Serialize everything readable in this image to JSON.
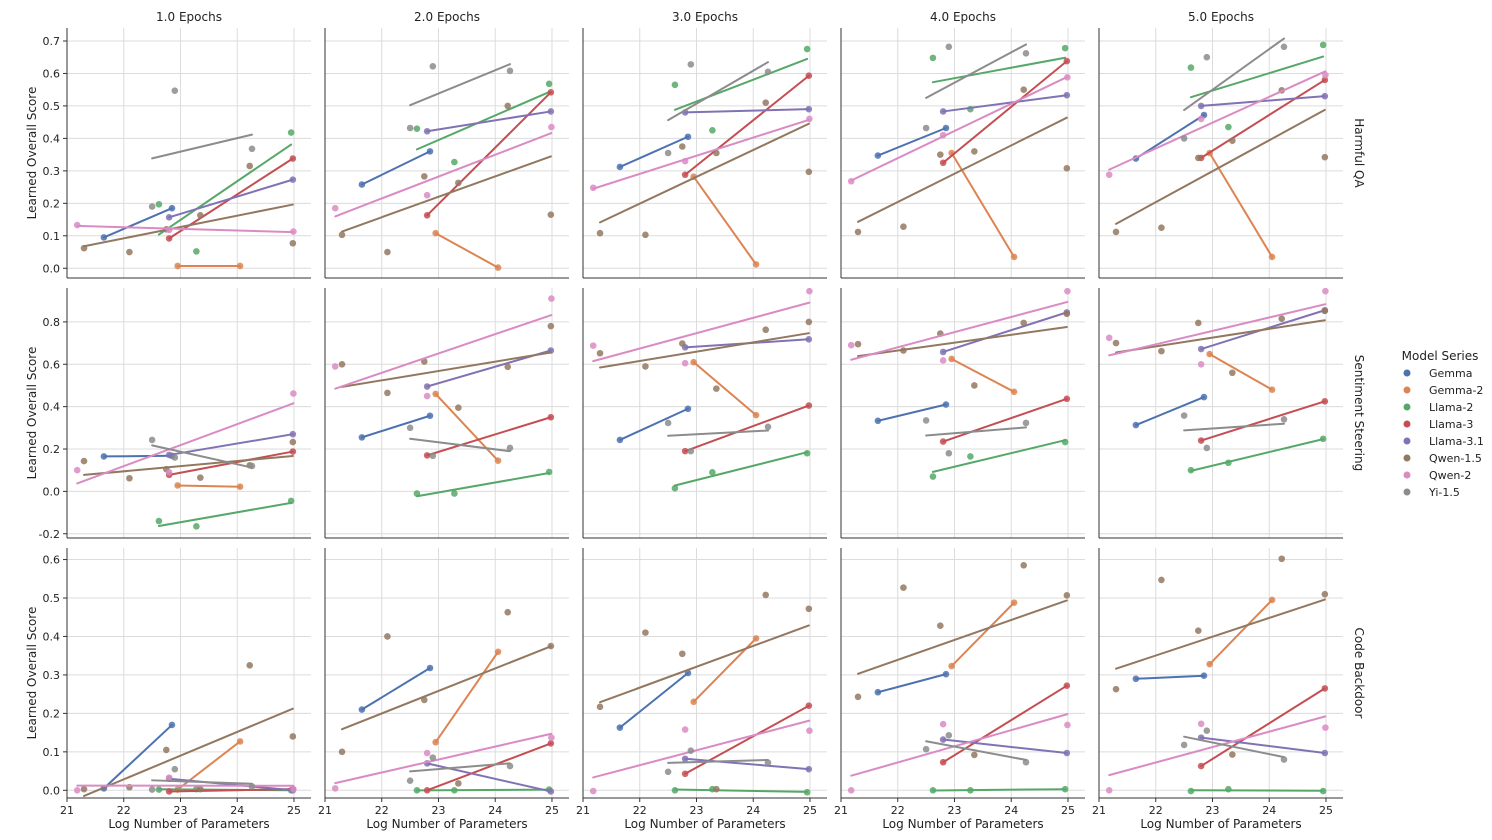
{
  "chart_data": {
    "type": "scatter",
    "figure_kind": "faceted scatter with per-series regression lines",
    "columns": [
      "1.0 Epochs",
      "2.0 Epochs",
      "3.0 Epochs",
      "4.0 Epochs",
      "5.0 Epochs"
    ],
    "rows": [
      "Harmful QA",
      "Sentiment Steering",
      "Code Backdoor"
    ],
    "xlabel": "Log Number of Parameters",
    "ylabel": "Learned Overall Score",
    "xlim": [
      21,
      25.3
    ],
    "xticks": [
      21,
      22,
      23,
      24,
      25
    ],
    "ylims": [
      [
        -0.03,
        0.74
      ],
      [
        -0.22,
        0.96
      ],
      [
        -0.02,
        0.63
      ]
    ],
    "yticks": [
      [
        0.0,
        0.1,
        0.2,
        0.3,
        0.4,
        0.5,
        0.6,
        0.7
      ],
      [
        -0.2,
        0.0,
        0.2,
        0.4,
        0.6,
        0.8
      ],
      [
        0.0,
        0.1,
        0.2,
        0.3,
        0.4,
        0.5,
        0.6
      ]
    ],
    "grid": true,
    "legend": {
      "title": "Model Series",
      "placement": "right",
      "entries": [
        "Gemma",
        "Gemma-2",
        "Llama-2",
        "Llama-3",
        "Llama-3.1",
        "Qwen-1.5",
        "Qwen-2",
        "Yi-1.5"
      ]
    },
    "colors": {
      "Gemma": "#4c72b0",
      "Gemma-2": "#dd8452",
      "Llama-2": "#55a868",
      "Llama-3": "#c44e52",
      "Llama-3.1": "#8172b3",
      "Qwen-1.5": "#937860",
      "Qwen-2": "#da8bc3",
      "Yi-1.5": "#8c8c8c"
    },
    "series_x": {
      "Gemma": [
        21.65,
        22.85
      ],
      "Gemma-2": [
        22.95,
        24.05
      ],
      "Llama-2": [
        22.62,
        23.28,
        24.95
      ],
      "Llama-3": [
        22.8,
        24.98
      ],
      "Llama-3.1": [
        22.8,
        24.98
      ],
      "Qwen-1.5": [
        21.3,
        22.1,
        22.75,
        23.35,
        24.22,
        24.98
      ],
      "Qwen-2": [
        21.18,
        22.8,
        24.99
      ],
      "Yi-1.5": [
        22.5,
        22.9,
        24.26
      ]
    },
    "panels": [
      {
        "row": 0,
        "col": 0,
        "points": {
          "Gemma": [
            0.095,
            0.185
          ],
          "Gemma-2": [
            0.007,
            0.007
          ],
          "Llama-2": [
            0.197,
            0.052,
            0.418
          ],
          "Llama-3": [
            0.092,
            0.338
          ],
          "Llama-3.1": [
            0.157,
            0.273
          ],
          "Qwen-1.5": [
            0.062,
            0.05,
            0.12,
            0.163,
            0.315,
            0.077
          ],
          "Qwen-2": [
            0.133,
            0.118,
            0.113
          ],
          "Yi-1.5": [
            0.19,
            0.547,
            0.368
          ]
        }
      },
      {
        "row": 0,
        "col": 1,
        "points": {
          "Gemma": [
            0.258,
            0.36
          ],
          "Gemma-2": [
            0.108,
            0.002
          ],
          "Llama-2": [
            0.43,
            0.327,
            0.568
          ],
          "Llama-3": [
            0.163,
            0.542
          ],
          "Llama-3.1": [
            0.422,
            0.483
          ],
          "Qwen-1.5": [
            0.103,
            0.05,
            0.283,
            0.263,
            0.5,
            0.165
          ],
          "Qwen-2": [
            0.185,
            0.225,
            0.435
          ],
          "Yi-1.5": [
            0.432,
            0.622,
            0.608
          ]
        }
      },
      {
        "row": 0,
        "col": 2,
        "points": {
          "Gemma": [
            0.312,
            0.405
          ],
          "Gemma-2": [
            0.282,
            0.012
          ],
          "Llama-2": [
            0.565,
            0.425,
            0.675
          ],
          "Llama-3": [
            0.288,
            0.593
          ],
          "Llama-3.1": [
            0.48,
            0.49
          ],
          "Qwen-1.5": [
            0.108,
            0.103,
            0.375,
            0.355,
            0.51,
            0.297
          ],
          "Qwen-2": [
            0.248,
            0.33,
            0.46
          ],
          "Yi-1.5": [
            0.355,
            0.628,
            0.605
          ]
        }
      },
      {
        "row": 0,
        "col": 3,
        "points": {
          "Gemma": [
            0.347,
            0.432
          ],
          "Gemma-2": [
            0.355,
            0.035
          ],
          "Llama-2": [
            0.648,
            0.49,
            0.678
          ],
          "Llama-3": [
            0.325,
            0.638
          ],
          "Llama-3.1": [
            0.483,
            0.533
          ],
          "Qwen-1.5": [
            0.112,
            0.128,
            0.35,
            0.36,
            0.55,
            0.308
          ],
          "Qwen-2": [
            0.268,
            0.41,
            0.588
          ],
          "Yi-1.5": [
            0.432,
            0.682,
            0.662
          ]
        }
      },
      {
        "row": 0,
        "col": 4,
        "points": {
          "Gemma": [
            0.338,
            0.472
          ],
          "Gemma-2": [
            0.355,
            0.035
          ],
          "Llama-2": [
            0.618,
            0.435,
            0.688
          ],
          "Llama-3": [
            0.34,
            0.58
          ],
          "Llama-3.1": [
            0.5,
            0.53
          ],
          "Qwen-1.5": [
            0.112,
            0.125,
            0.34,
            0.393,
            0.548,
            0.342
          ],
          "Qwen-2": [
            0.288,
            0.46,
            0.595
          ],
          "Yi-1.5": [
            0.4,
            0.65,
            0.682
          ]
        }
      },
      {
        "row": 1,
        "col": 0,
        "points": {
          "Gemma": [
            0.165,
            0.168
          ],
          "Gemma-2": [
            0.028,
            0.022
          ],
          "Llama-2": [
            -0.14,
            -0.165,
            -0.045
          ],
          "Llama-3": [
            0.078,
            0.188
          ],
          "Llama-3.1": [
            0.172,
            0.27
          ],
          "Qwen-1.5": [
            0.143,
            0.062,
            0.105,
            0.065,
            0.123,
            0.233
          ],
          "Qwen-2": [
            0.1,
            0.09,
            0.462
          ],
          "Yi-1.5": [
            0.243,
            0.16,
            0.12
          ]
        }
      },
      {
        "row": 1,
        "col": 1,
        "points": {
          "Gemma": [
            0.255,
            0.357
          ],
          "Gemma-2": [
            0.46,
            0.145
          ],
          "Llama-2": [
            -0.01,
            -0.01,
            0.092
          ],
          "Llama-3": [
            0.17,
            0.35
          ],
          "Llama-3.1": [
            0.495,
            0.665
          ],
          "Qwen-1.5": [
            0.6,
            0.465,
            0.613,
            0.395,
            0.588,
            0.78
          ],
          "Qwen-2": [
            0.59,
            0.45,
            0.91
          ],
          "Yi-1.5": [
            0.3,
            0.168,
            0.205
          ]
        }
      },
      {
        "row": 1,
        "col": 2,
        "points": {
          "Gemma": [
            0.243,
            0.39
          ],
          "Gemma-2": [
            0.61,
            0.36
          ],
          "Llama-2": [
            0.015,
            0.09,
            0.18
          ],
          "Llama-3": [
            0.19,
            0.405
          ],
          "Llama-3.1": [
            0.68,
            0.718
          ],
          "Qwen-1.5": [
            0.652,
            0.59,
            0.698,
            0.485,
            0.763,
            0.8
          ],
          "Qwen-2": [
            0.688,
            0.605,
            0.945
          ],
          "Yi-1.5": [
            0.323,
            0.19,
            0.305
          ]
        }
      },
      {
        "row": 1,
        "col": 3,
        "points": {
          "Gemma": [
            0.333,
            0.41
          ],
          "Gemma-2": [
            0.625,
            0.47
          ],
          "Llama-2": [
            0.07,
            0.165,
            0.233
          ],
          "Llama-3": [
            0.235,
            0.437
          ],
          "Llama-3.1": [
            0.658,
            0.845
          ],
          "Qwen-1.5": [
            0.695,
            0.665,
            0.745,
            0.5,
            0.795,
            0.838
          ],
          "Qwen-2": [
            0.69,
            0.618,
            0.945
          ],
          "Yi-1.5": [
            0.335,
            0.18,
            0.323
          ]
        }
      },
      {
        "row": 1,
        "col": 4,
        "points": {
          "Gemma": [
            0.313,
            0.445
          ],
          "Gemma-2": [
            0.648,
            0.48
          ],
          "Llama-2": [
            0.1,
            0.135,
            0.248
          ],
          "Llama-3": [
            0.24,
            0.425
          ],
          "Llama-3.1": [
            0.672,
            0.855
          ],
          "Qwen-1.5": [
            0.7,
            0.662,
            0.795,
            0.56,
            0.815,
            0.852
          ],
          "Qwen-2": [
            0.725,
            0.6,
            0.945
          ],
          "Yi-1.5": [
            0.358,
            0.205,
            0.34
          ]
        }
      },
      {
        "row": 2,
        "col": 0,
        "points": {
          "Gemma": [
            0.005,
            0.17
          ],
          "Gemma-2": [
            0.002,
            0.127
          ],
          "Llama-2": [
            0.002,
            0.003,
            0.0
          ],
          "Llama-3": [
            -0.003,
            0.003
          ],
          "Llama-3.1": [
            0.03,
            0.0
          ],
          "Qwen-1.5": [
            0.003,
            0.008,
            0.105,
            0.003,
            0.325,
            0.14
          ],
          "Qwen-2": [
            0.0,
            0.033,
            0.003
          ],
          "Yi-1.5": [
            0.002,
            0.055,
            0.01
          ]
        }
      },
      {
        "row": 2,
        "col": 1,
        "points": {
          "Gemma": [
            0.21,
            0.318
          ],
          "Gemma-2": [
            0.125,
            0.36
          ],
          "Llama-2": [
            0.0,
            0.0,
            0.002
          ],
          "Llama-3": [
            0.0,
            0.122
          ],
          "Llama-3.1": [
            0.07,
            -0.003
          ],
          "Qwen-1.5": [
            0.1,
            0.4,
            0.235,
            0.018,
            0.463,
            0.375
          ],
          "Qwen-2": [
            0.005,
            0.097,
            0.137
          ],
          "Yi-1.5": [
            0.025,
            0.085,
            0.063
          ]
        }
      },
      {
        "row": 2,
        "col": 2,
        "points": {
          "Gemma": [
            0.163,
            0.305
          ],
          "Gemma-2": [
            0.23,
            0.395
          ],
          "Llama-2": [
            0.0,
            0.003,
            -0.005
          ],
          "Llama-3": [
            0.043,
            0.22
          ],
          "Llama-3.1": [
            0.082,
            0.055
          ],
          "Qwen-1.5": [
            0.217,
            0.41,
            0.355,
            0.003,
            0.508,
            0.472
          ],
          "Qwen-2": [
            -0.002,
            0.158,
            0.155
          ],
          "Yi-1.5": [
            0.048,
            0.103,
            0.072
          ]
        }
      },
      {
        "row": 2,
        "col": 3,
        "points": {
          "Gemma": [
            0.255,
            0.302
          ],
          "Gemma-2": [
            0.323,
            0.488
          ],
          "Llama-2": [
            0.0,
            0.0,
            0.003
          ],
          "Llama-3": [
            0.073,
            0.272
          ],
          "Llama-3.1": [
            0.132,
            0.097
          ],
          "Qwen-1.5": [
            0.243,
            0.527,
            0.428,
            0.092,
            0.585,
            0.507
          ],
          "Qwen-2": [
            0.0,
            0.172,
            0.17
          ],
          "Yi-1.5": [
            0.107,
            0.143,
            0.073
          ]
        }
      },
      {
        "row": 2,
        "col": 4,
        "points": {
          "Gemma": [
            0.29,
            0.298
          ],
          "Gemma-2": [
            0.328,
            0.495
          ],
          "Llama-2": [
            -0.002,
            0.003,
            -0.002
          ],
          "Llama-3": [
            0.063,
            0.265
          ],
          "Llama-3.1": [
            0.137,
            0.097
          ],
          "Qwen-1.5": [
            0.263,
            0.547,
            0.415,
            0.093,
            0.602,
            0.51
          ],
          "Qwen-2": [
            0.0,
            0.173,
            0.163
          ],
          "Yi-1.5": [
            0.118,
            0.155,
            0.08
          ]
        }
      }
    ]
  }
}
